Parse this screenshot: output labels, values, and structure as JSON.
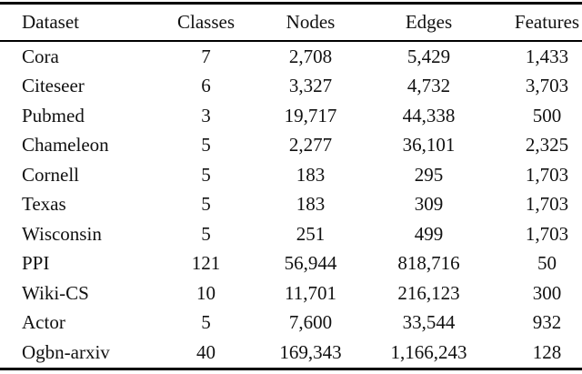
{
  "table": {
    "caption_hint": "dataset-statistics-table",
    "columns": [
      "Dataset",
      "Classes",
      "Nodes",
      "Edges",
      "Features"
    ],
    "rows": [
      [
        "Cora",
        "7",
        "2,708",
        "5,429",
        "1,433"
      ],
      [
        "Citeseer",
        "6",
        "3,327",
        "4,732",
        "3,703"
      ],
      [
        "Pubmed",
        "3",
        "19,717",
        "44,338",
        "500"
      ],
      [
        "Chameleon",
        "5",
        "2,277",
        "36,101",
        "2,325"
      ],
      [
        "Cornell",
        "5",
        "183",
        "295",
        "1,703"
      ],
      [
        "Texas",
        "5",
        "183",
        "309",
        "1,703"
      ],
      [
        "Wisconsin",
        "5",
        "251",
        "499",
        "1,703"
      ],
      [
        "PPI",
        "121",
        "56,944",
        "818,716",
        "50"
      ],
      [
        "Wiki-CS",
        "10",
        "11,701",
        "216,123",
        "300"
      ],
      [
        "Actor",
        "5",
        "7,600",
        "33,544",
        "932"
      ],
      [
        "Ogbn-arxiv",
        "40",
        "169,343",
        "1,166,243",
        "128"
      ]
    ],
    "rule_color": "#000000",
    "text_color": "#111111",
    "background_color": "#ffffff"
  }
}
